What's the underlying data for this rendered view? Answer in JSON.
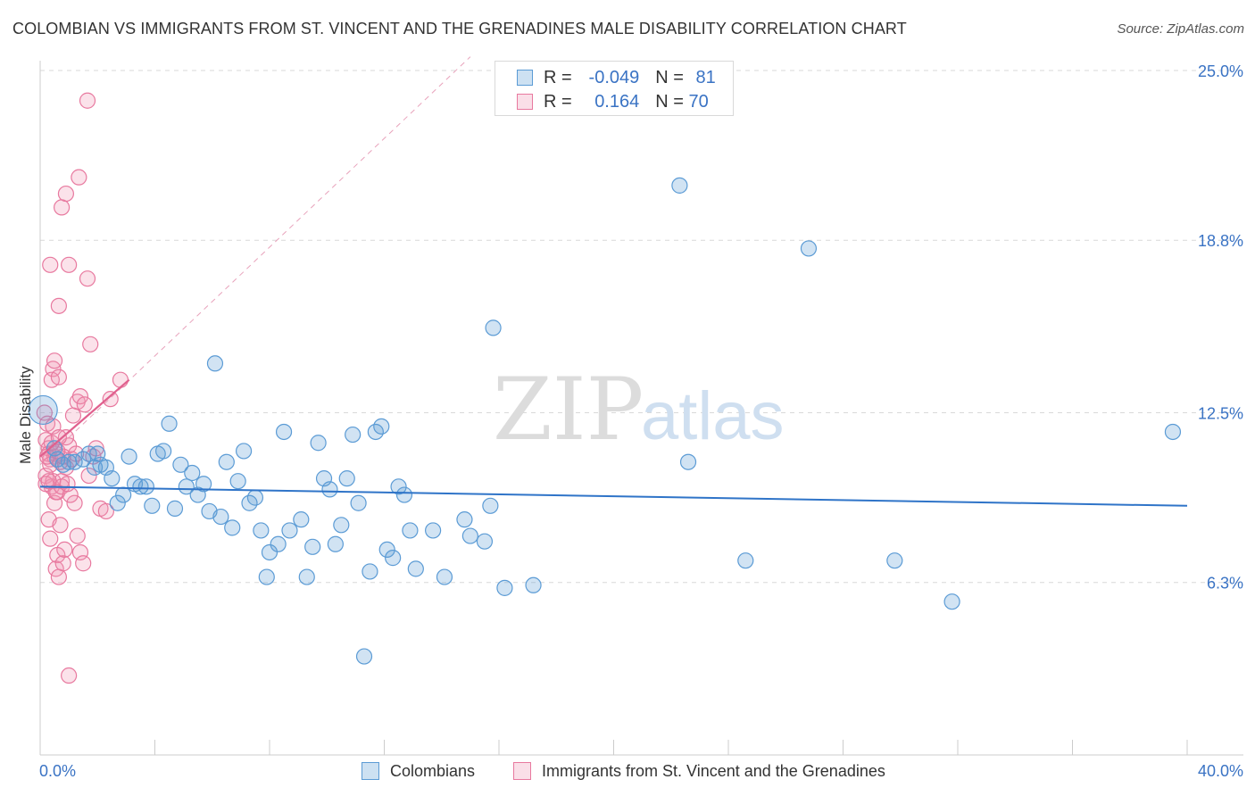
{
  "title": "COLOMBIAN VS IMMIGRANTS FROM ST. VINCENT AND THE GRENADINES MALE DISABILITY CORRELATION CHART",
  "source": "Source: ZipAtlas.com",
  "watermark": {
    "zip": "ZIP",
    "atlas": "atlas"
  },
  "legend": {
    "row1": {
      "r_label": "R =",
      "r_value": "-0.049",
      "n_label": "N =",
      "n_value": "81"
    },
    "row2": {
      "r_label": "R =",
      "r_value": "0.164",
      "n_label": "N =",
      "n_value": "70"
    }
  },
  "bottom_legend": {
    "series1": "Colombians",
    "series2": "Immigrants from St. Vincent and the Grenadines"
  },
  "colors": {
    "blue": "#5b9bd5",
    "blue_fill": "rgba(91,155,213,0.28)",
    "blue_line": "#2f74c8",
    "pink": "#e8799f",
    "pink_fill": "rgba(240,150,180,0.28)",
    "pink_line": "#e0608e",
    "grid": "#d9d9d9",
    "tick_text": "#3a73c4"
  },
  "chart_data": {
    "type": "scatter",
    "title": "COLOMBIAN VS IMMIGRANTS FROM ST. VINCENT AND THE GRENADINES MALE DISABILITY CORRELATION CHART",
    "xlabel": "",
    "ylabel": "Male Disability",
    "xlim": [
      0,
      40
    ],
    "ylim": [
      0,
      26
    ],
    "x_tick_labels": [
      "0.0%",
      "40.0%"
    ],
    "y_ticks": [
      6.3,
      12.5,
      18.8,
      25.0
    ],
    "y_tick_labels": [
      "6.3%",
      "12.5%",
      "18.8%",
      "25.0%"
    ],
    "grid": true,
    "legend_position": "top-center",
    "series": [
      {
        "name": "Colombians",
        "r": -0.049,
        "n": 81,
        "trend": {
          "x": [
            0,
            40
          ],
          "y": [
            9.8,
            9.1
          ]
        },
        "points": [
          [
            0.1,
            12.6
          ],
          [
            0.5,
            11.2
          ],
          [
            0.6,
            10.8
          ],
          [
            0.8,
            10.6
          ],
          [
            1.0,
            10.7
          ],
          [
            1.2,
            10.7
          ],
          [
            1.5,
            10.8
          ],
          [
            1.7,
            11.0
          ],
          [
            1.9,
            10.5
          ],
          [
            2.1,
            10.6
          ],
          [
            2.3,
            10.5
          ],
          [
            2.5,
            10.1
          ],
          [
            2.7,
            9.2
          ],
          [
            2.9,
            9.5
          ],
          [
            3.1,
            10.9
          ],
          [
            3.3,
            9.9
          ],
          [
            3.5,
            9.8
          ],
          [
            3.7,
            9.8
          ],
          [
            3.9,
            9.1
          ],
          [
            4.1,
            11.0
          ],
          [
            4.3,
            11.1
          ],
          [
            4.5,
            12.1
          ],
          [
            4.7,
            9.0
          ],
          [
            4.9,
            10.6
          ],
          [
            5.1,
            9.8
          ],
          [
            5.3,
            10.3
          ],
          [
            5.5,
            9.5
          ],
          [
            5.7,
            9.9
          ],
          [
            5.9,
            8.9
          ],
          [
            6.1,
            14.3
          ],
          [
            6.3,
            8.7
          ],
          [
            6.5,
            10.7
          ],
          [
            6.7,
            8.3
          ],
          [
            6.9,
            10.0
          ],
          [
            7.1,
            11.1
          ],
          [
            7.3,
            9.2
          ],
          [
            7.5,
            9.4
          ],
          [
            7.7,
            8.2
          ],
          [
            7.9,
            6.5
          ],
          [
            8.0,
            7.4
          ],
          [
            8.3,
            7.7
          ],
          [
            8.5,
            11.8
          ],
          [
            8.7,
            8.2
          ],
          [
            9.1,
            8.6
          ],
          [
            9.3,
            6.5
          ],
          [
            9.5,
            7.6
          ],
          [
            9.7,
            11.4
          ],
          [
            9.9,
            10.1
          ],
          [
            10.1,
            9.7
          ],
          [
            10.3,
            7.7
          ],
          [
            10.5,
            8.4
          ],
          [
            10.7,
            10.1
          ],
          [
            10.9,
            11.7
          ],
          [
            11.1,
            9.2
          ],
          [
            11.3,
            3.6
          ],
          [
            11.5,
            6.7
          ],
          [
            11.7,
            11.8
          ],
          [
            11.9,
            12.0
          ],
          [
            12.1,
            7.5
          ],
          [
            12.3,
            7.2
          ],
          [
            12.5,
            9.8
          ],
          [
            12.7,
            9.5
          ],
          [
            12.9,
            8.2
          ],
          [
            13.1,
            6.8
          ],
          [
            13.7,
            8.2
          ],
          [
            14.1,
            6.5
          ],
          [
            14.8,
            8.6
          ],
          [
            15.0,
            8.0
          ],
          [
            15.5,
            7.8
          ],
          [
            15.7,
            9.1
          ],
          [
            15.8,
            15.6
          ],
          [
            16.2,
            6.1
          ],
          [
            17.2,
            6.2
          ],
          [
            22.3,
            20.8
          ],
          [
            22.6,
            10.7
          ],
          [
            24.6,
            7.1
          ],
          [
            26.8,
            18.5
          ],
          [
            29.8,
            7.1
          ],
          [
            31.8,
            5.6
          ],
          [
            39.5,
            11.8
          ],
          [
            2.0,
            11.0
          ]
        ]
      },
      {
        "name": "Immigrants from St. Vincent and the Grenadines",
        "r": 0.164,
        "n": 70,
        "trend": {
          "x": [
            0,
            3.1
          ],
          "y": [
            10.9,
            13.7
          ]
        },
        "points": [
          [
            0.15,
            12.5
          ],
          [
            0.25,
            12.1
          ],
          [
            0.2,
            11.5
          ],
          [
            0.3,
            11.2
          ],
          [
            0.35,
            10.8
          ],
          [
            0.2,
            10.2
          ],
          [
            0.4,
            9.8
          ],
          [
            0.45,
            10.0
          ],
          [
            0.3,
            8.6
          ],
          [
            0.5,
            9.2
          ],
          [
            0.35,
            7.9
          ],
          [
            0.6,
            7.3
          ],
          [
            0.55,
            6.8
          ],
          [
            0.65,
            6.5
          ],
          [
            0.8,
            7.0
          ],
          [
            0.7,
            8.4
          ],
          [
            0.85,
            7.5
          ],
          [
            0.6,
            9.6
          ],
          [
            0.75,
            10.0
          ],
          [
            0.9,
            10.5
          ],
          [
            1.0,
            11.3
          ],
          [
            0.9,
            11.6
          ],
          [
            1.1,
            10.8
          ],
          [
            1.2,
            9.2
          ],
          [
            1.3,
            8.0
          ],
          [
            1.4,
            7.4
          ],
          [
            1.5,
            7.0
          ],
          [
            1.15,
            12.4
          ],
          [
            1.3,
            12.9
          ],
          [
            1.4,
            13.1
          ],
          [
            1.55,
            12.8
          ],
          [
            1.7,
            10.2
          ],
          [
            1.85,
            10.9
          ],
          [
            1.95,
            11.2
          ],
          [
            2.1,
            9.0
          ],
          [
            2.3,
            8.9
          ],
          [
            2.45,
            13.0
          ],
          [
            2.8,
            13.7
          ],
          [
            0.35,
            17.9
          ],
          [
            0.65,
            16.4
          ],
          [
            0.75,
            20.0
          ],
          [
            0.9,
            20.5
          ],
          [
            1.0,
            17.9
          ],
          [
            1.35,
            21.1
          ],
          [
            1.65,
            17.4
          ],
          [
            1.75,
            15.0
          ],
          [
            1.65,
            23.9
          ],
          [
            0.45,
            14.1
          ],
          [
            0.5,
            14.4
          ],
          [
            0.4,
            13.7
          ],
          [
            0.65,
            13.8
          ],
          [
            1.0,
            2.9
          ],
          [
            0.3,
            11.0
          ],
          [
            0.5,
            10.9
          ],
          [
            0.55,
            11.0
          ],
          [
            0.7,
            10.7
          ],
          [
            0.8,
            10.9
          ],
          [
            0.35,
            10.6
          ],
          [
            0.25,
            10.9
          ],
          [
            0.6,
            11.1
          ],
          [
            0.4,
            11.4
          ],
          [
            0.45,
            12.0
          ],
          [
            0.2,
            9.9
          ],
          [
            0.55,
            9.6
          ],
          [
            0.75,
            9.8
          ],
          [
            1.05,
            9.5
          ],
          [
            0.3,
            10.0
          ],
          [
            0.65,
            11.6
          ],
          [
            1.25,
            11.0
          ],
          [
            0.95,
            9.9
          ]
        ]
      }
    ]
  }
}
